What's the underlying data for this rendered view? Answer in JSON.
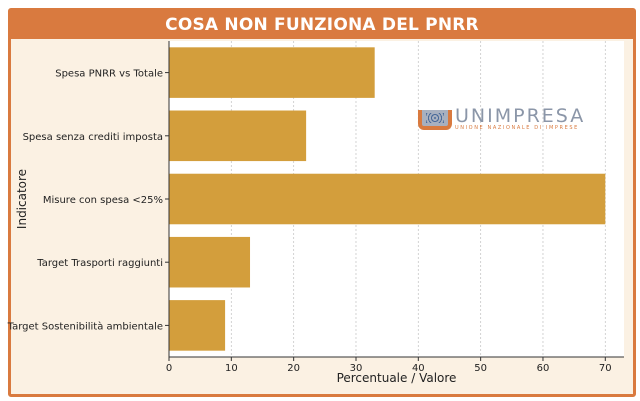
{
  "header": {
    "title": "COSA NON FUNZIONA DEL PNRR"
  },
  "logo": {
    "name": "UNIMPRESA",
    "subtitle": "UNIONE NAZIONALE DI IMPRESE"
  },
  "colors": {
    "frame": "#d97a3f",
    "background": "#fbf1e3",
    "bar": "#d39e3c",
    "plot_bg": "#ffffff"
  },
  "chart_data": {
    "type": "bar",
    "orientation": "horizontal",
    "categories": [
      "Spesa PNRR vs Totale",
      "Spesa senza crediti imposta",
      "Misure con spesa <25%",
      "Target Trasporti raggiunti",
      "Target Sostenibilità ambientale"
    ],
    "values": [
      33,
      22,
      70,
      13,
      9
    ],
    "xlabel": "Percentuale / Valore",
    "ylabel": "Indicatore",
    "xlim": [
      0,
      73
    ],
    "xticks": [
      0,
      10,
      20,
      30,
      40,
      50,
      60,
      70
    ],
    "grid": "vertical-dashed",
    "legend": "none"
  }
}
